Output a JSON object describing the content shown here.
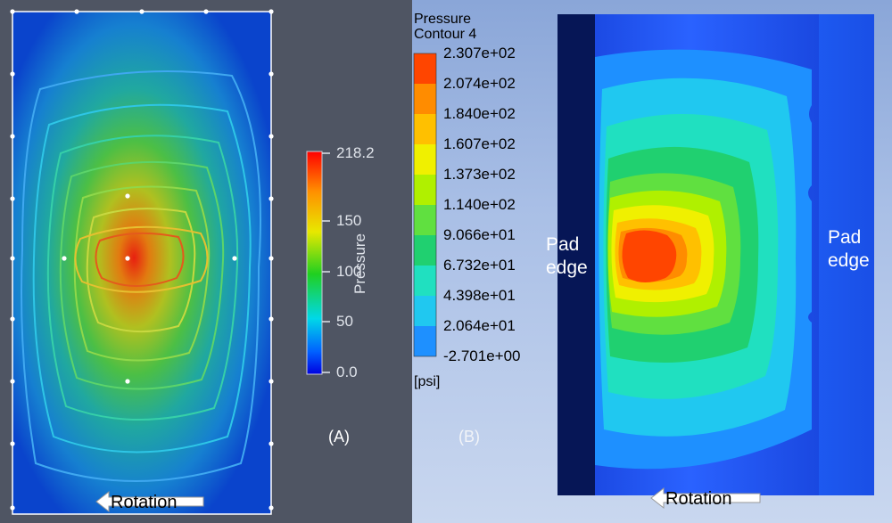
{
  "panel_a": {
    "caption": "(A)",
    "colorbar": {
      "title": "Pressure",
      "ticks": [
        {
          "label": "218.2",
          "value": 218.2
        },
        {
          "label": "150",
          "value": 150
        },
        {
          "label": "100",
          "value": 100
        },
        {
          "label": "50",
          "value": 50
        },
        {
          "label": "0.0",
          "value": 0.0
        }
      ],
      "range": [
        0.0,
        218.2
      ]
    },
    "rotation_label": "Rotation"
  },
  "panel_b": {
    "caption": "(B)",
    "legend": {
      "title_line1": "Pressure",
      "title_line2": "Contour 4",
      "unit": "[psi]",
      "levels": [
        "2.307e+02",
        "2.074e+02",
        "1.840e+02",
        "1.607e+02",
        "1.373e+02",
        "1.140e+02",
        "9.066e+01",
        "6.732e+01",
        "4.398e+01",
        "2.064e+01",
        "-2.701e+00"
      ],
      "colors": [
        "#ff4500",
        "#ff8c00",
        "#ffc000",
        "#f0f000",
        "#b0f000",
        "#60e040",
        "#20d070",
        "#20e0c0",
        "#20c8f0",
        "#1e90ff",
        "#1a4dff"
      ]
    },
    "pad_edge_left": [
      "Pad",
      "edge"
    ],
    "pad_edge_right": [
      "Pad",
      "edge"
    ],
    "rotation_label": "Rotation"
  }
}
